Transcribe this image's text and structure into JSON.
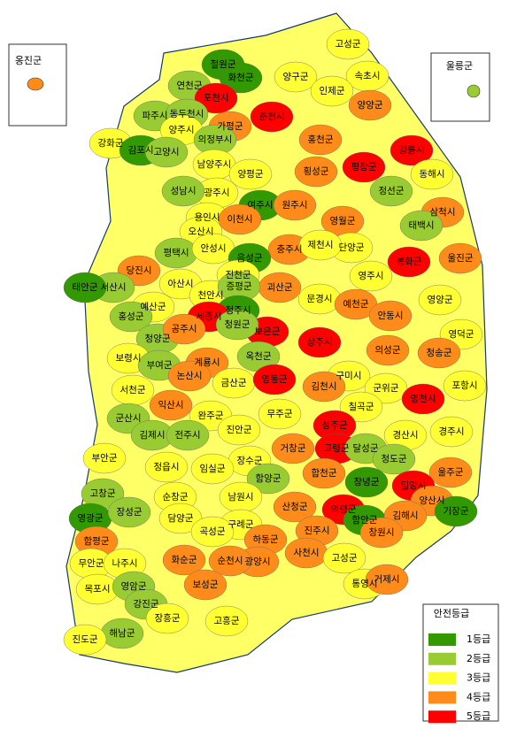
{
  "map": {
    "insets": [
      {
        "name": "옹진군",
        "grade": 4
      },
      {
        "name": "울릉군",
        "grade": 2
      }
    ],
    "regions": [
      {
        "name": "고성군",
        "grade": 3
      },
      {
        "name": "철원군",
        "grade": 1
      },
      {
        "name": "양구군",
        "grade": 3
      },
      {
        "name": "속초시",
        "grade": 3
      },
      {
        "name": "연천군",
        "grade": 2
      },
      {
        "name": "화천군",
        "grade": 1
      },
      {
        "name": "인제군",
        "grade": 3
      },
      {
        "name": "포천시",
        "grade": 5
      },
      {
        "name": "춘천시",
        "grade": 5
      },
      {
        "name": "양양군",
        "grade": 4
      },
      {
        "name": "파주시",
        "grade": 2
      },
      {
        "name": "동두천시",
        "grade": 2
      },
      {
        "name": "양주시",
        "grade": 3
      },
      {
        "name": "가평군",
        "grade": 4
      },
      {
        "name": "의정부시",
        "grade": 2
      },
      {
        "name": "홍천군",
        "grade": 4
      },
      {
        "name": "강릉시",
        "grade": 5
      },
      {
        "name": "강화군",
        "grade": 3
      },
      {
        "name": "김포시",
        "grade": 1
      },
      {
        "name": "고양시",
        "grade": 2
      },
      {
        "name": "남양주시",
        "grade": 3
      },
      {
        "name": "평창군",
        "grade": 5
      },
      {
        "name": "동해시",
        "grade": 3
      },
      {
        "name": "횡성군",
        "grade": 4
      },
      {
        "name": "양평군",
        "grade": 3
      },
      {
        "name": "광주시",
        "grade": 3
      },
      {
        "name": "정선군",
        "grade": 2
      },
      {
        "name": "성남시",
        "grade": 2
      },
      {
        "name": "여주시",
        "grade": 1
      },
      {
        "name": "원주시",
        "grade": 4
      },
      {
        "name": "삼척시",
        "grade": 4
      },
      {
        "name": "용인시",
        "grade": 3
      },
      {
        "name": "이천시",
        "grade": 4
      },
      {
        "name": "오산시",
        "grade": 3
      },
      {
        "name": "영월군",
        "grade": 4
      },
      {
        "name": "태백시",
        "grade": 2
      },
      {
        "name": "평택시",
        "grade": 2
      },
      {
        "name": "안성시",
        "grade": 3
      },
      {
        "name": "충주시",
        "grade": 4
      },
      {
        "name": "단양군",
        "grade": 3
      },
      {
        "name": "제천시",
        "grade": 3
      },
      {
        "name": "당진시",
        "grade": 4
      },
      {
        "name": "음성군",
        "grade": 1
      },
      {
        "name": "봉화군",
        "grade": 5
      },
      {
        "name": "울진군",
        "grade": 4
      },
      {
        "name": "진천군",
        "grade": 3
      },
      {
        "name": "아산시",
        "grade": 3
      },
      {
        "name": "천안시",
        "grade": 3
      },
      {
        "name": "괴산군",
        "grade": 4
      },
      {
        "name": "영주시",
        "grade": 3
      },
      {
        "name": "서산시",
        "grade": 2
      },
      {
        "name": "태안군",
        "grade": 1
      },
      {
        "name": "증평군",
        "grade": 2
      },
      {
        "name": "문경시",
        "grade": 3
      },
      {
        "name": "예천군",
        "grade": 4
      },
      {
        "name": "영양군",
        "grade": 3
      },
      {
        "name": "예산군",
        "grade": 3
      },
      {
        "name": "홍성군",
        "grade": 2
      },
      {
        "name": "청주시",
        "grade": 1
      },
      {
        "name": "세종시",
        "grade": 5
      },
      {
        "name": "보은군",
        "grade": 5
      },
      {
        "name": "안동시",
        "grade": 4
      },
      {
        "name": "청양군",
        "grade": 2
      },
      {
        "name": "공주시",
        "grade": 4
      },
      {
        "name": "청원군",
        "grade": 2
      },
      {
        "name": "상주시",
        "grade": 5
      },
      {
        "name": "영덕군",
        "grade": 3
      },
      {
        "name": "보령시",
        "grade": 3
      },
      {
        "name": "부여군",
        "grade": 2
      },
      {
        "name": "계룡시",
        "grade": 4
      },
      {
        "name": "옥천군",
        "grade": 2
      },
      {
        "name": "의성군",
        "grade": 4
      },
      {
        "name": "청송군",
        "grade": 4
      },
      {
        "name": "논산시",
        "grade": 4
      },
      {
        "name": "금산군",
        "grade": 3
      },
      {
        "name": "영동군",
        "grade": 5
      },
      {
        "name": "구미시",
        "grade": 3
      },
      {
        "name": "김천시",
        "grade": 4
      },
      {
        "name": "군위군",
        "grade": 3
      },
      {
        "name": "포항시",
        "grade": 3
      },
      {
        "name": "서천군",
        "grade": 3
      },
      {
        "name": "익산시",
        "grade": 4
      },
      {
        "name": "칠곡군",
        "grade": 3
      },
      {
        "name": "영천시",
        "grade": 5
      },
      {
        "name": "무주군",
        "grade": 3
      },
      {
        "name": "완주군",
        "grade": 3
      },
      {
        "name": "군산시",
        "grade": 2
      },
      {
        "name": "김제시",
        "grade": 2
      },
      {
        "name": "전주시",
        "grade": 2
      },
      {
        "name": "진안군",
        "grade": 3
      },
      {
        "name": "성주군",
        "grade": 5
      },
      {
        "name": "경산시",
        "grade": 3
      },
      {
        "name": "경주시",
        "grade": 3
      },
      {
        "name": "고령군",
        "grade": 5
      },
      {
        "name": "달성군",
        "grade": 2
      },
      {
        "name": "청도군",
        "grade": 2
      },
      {
        "name": "부안군",
        "grade": 3
      },
      {
        "name": "장수군",
        "grade": 3
      },
      {
        "name": "거창군",
        "grade": 4
      },
      {
        "name": "정읍시",
        "grade": 3
      },
      {
        "name": "임실군",
        "grade": 3
      },
      {
        "name": "합천군",
        "grade": 4
      },
      {
        "name": "울주군",
        "grade": 4
      },
      {
        "name": "고창군",
        "grade": 2
      },
      {
        "name": "함양군",
        "grade": 2
      },
      {
        "name": "순창군",
        "grade": 3
      },
      {
        "name": "남원시",
        "grade": 3
      },
      {
        "name": "창녕군",
        "grade": 1
      },
      {
        "name": "밀양시",
        "grade": 5
      },
      {
        "name": "산청군",
        "grade": 4
      },
      {
        "name": "의령군",
        "grade": 5
      },
      {
        "name": "영광군",
        "grade": 1
      },
      {
        "name": "장성군",
        "grade": 2
      },
      {
        "name": "담양군",
        "grade": 3
      },
      {
        "name": "구례군",
        "grade": 3
      },
      {
        "name": "양산시",
        "grade": 4
      },
      {
        "name": "함안군",
        "grade": 1
      },
      {
        "name": "김해시",
        "grade": 4
      },
      {
        "name": "기장군",
        "grade": 1
      },
      {
        "name": "함평군",
        "grade": 4
      },
      {
        "name": "곡성군",
        "grade": 3
      },
      {
        "name": "하동군",
        "grade": 4
      },
      {
        "name": "진주시",
        "grade": 4
      },
      {
        "name": "창원시",
        "grade": 4
      },
      {
        "name": "광양시",
        "grade": 4
      },
      {
        "name": "무안군",
        "grade": 3
      },
      {
        "name": "나주시",
        "grade": 3
      },
      {
        "name": "화순군",
        "grade": 4
      },
      {
        "name": "순천시",
        "grade": 4
      },
      {
        "name": "사천시",
        "grade": 4
      },
      {
        "name": "고성군",
        "grade": 3
      },
      {
        "name": "목포시",
        "grade": 3
      },
      {
        "name": "영암군",
        "grade": 2
      },
      {
        "name": "보성군",
        "grade": 4
      },
      {
        "name": "통영시",
        "grade": 3
      },
      {
        "name": "거제시",
        "grade": 4
      },
      {
        "name": "강진군",
        "grade": 2
      },
      {
        "name": "장흥군",
        "grade": 3
      },
      {
        "name": "고흥군",
        "grade": 3
      },
      {
        "name": "해남군",
        "grade": 2
      },
      {
        "name": "진도군",
        "grade": 3
      }
    ],
    "legend": {
      "title": "안전등급",
      "items": [
        {
          "label": "1등급",
          "color": "#339900"
        },
        {
          "label": "2등급",
          "color": "#99cc33"
        },
        {
          "label": "3등급",
          "color": "#ffff33"
        },
        {
          "label": "4등급",
          "color": "#ff8c1a"
        },
        {
          "label": "5등급",
          "color": "#ff0000"
        }
      ]
    }
  }
}
